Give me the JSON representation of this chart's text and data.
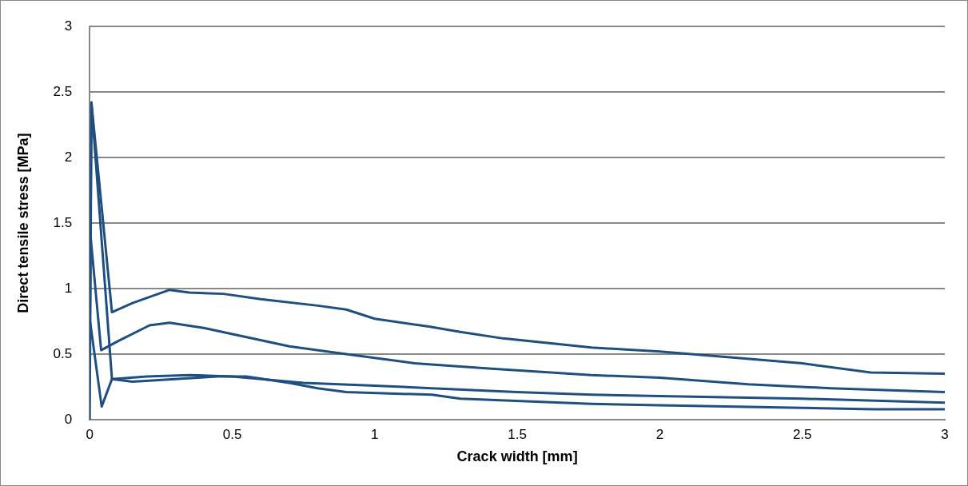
{
  "chart_data": {
    "type": "line",
    "xlabel": "Crack width [mm]",
    "ylabel": "Direct tensile stress [MPa]",
    "xlim": [
      0,
      3
    ],
    "xticks": [
      0,
      0.5,
      1,
      1.5,
      2,
      2.5,
      3
    ],
    "ylim": [
      0,
      3
    ],
    "yticks": [
      0,
      0.5,
      1,
      1.5,
      2,
      2.5,
      3
    ],
    "grid": "y",
    "legend": false,
    "marker": "none",
    "line_style": "solid",
    "series": [
      {
        "color": "#1f4e80",
        "x": [
          0,
          0.006,
          0.078,
          0.15,
          0.28,
          0.35,
          0.47,
          0.6,
          0.8,
          0.9,
          1.0,
          1.19,
          1.3,
          1.45,
          1.76,
          2.0,
          2.17,
          2.5,
          2.74,
          3.0
        ],
        "values": [
          0,
          2.42,
          0.82,
          0.89,
          0.99,
          0.97,
          0.96,
          0.92,
          0.87,
          0.84,
          0.77,
          0.71,
          0.67,
          0.62,
          0.55,
          0.52,
          0.49,
          0.43,
          0.36,
          0.35
        ]
      },
      {
        "color": "#1f4e80",
        "x": [
          0,
          0.04,
          0.1,
          0.21,
          0.28,
          0.4,
          0.55,
          0.7,
          0.9,
          1.14,
          1.4,
          1.76,
          2.0,
          2.31,
          2.6,
          3.0
        ],
        "values": [
          1.47,
          0.53,
          0.6,
          0.72,
          0.74,
          0.7,
          0.63,
          0.56,
          0.5,
          0.43,
          0.39,
          0.34,
          0.32,
          0.27,
          0.24,
          0.21
        ]
      },
      {
        "color": "#1f4e80",
        "x": [
          0,
          0.006,
          0.078,
          0.15,
          0.3,
          0.45,
          0.55,
          0.7,
          0.8,
          0.9,
          1.2,
          1.3,
          1.76,
          2.0,
          2.5,
          2.75,
          3.0
        ],
        "values": [
          0.5,
          2.42,
          0.31,
          0.29,
          0.31,
          0.33,
          0.33,
          0.28,
          0.24,
          0.21,
          0.19,
          0.16,
          0.12,
          0.11,
          0.09,
          0.08,
          0.08
        ]
      },
      {
        "color": "#1f4e80",
        "x": [
          0,
          0.042,
          0.078,
          0.2,
          0.35,
          0.5,
          0.75,
          1.0,
          1.2,
          1.5,
          1.76,
          2.0,
          2.5,
          3.0
        ],
        "values": [
          0.77,
          0.1,
          0.31,
          0.33,
          0.34,
          0.33,
          0.28,
          0.26,
          0.24,
          0.21,
          0.19,
          0.18,
          0.16,
          0.13
        ]
      }
    ]
  }
}
